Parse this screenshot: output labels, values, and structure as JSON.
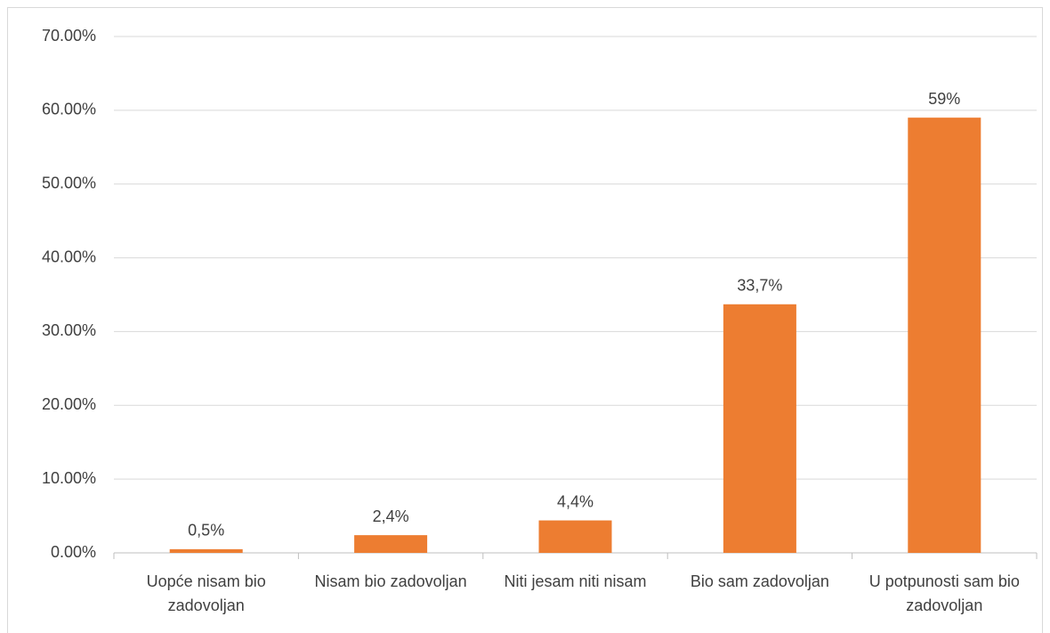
{
  "chart_data": {
    "type": "bar",
    "categories": [
      "Uopće nisam bio zadovoljan",
      "Nisam bio zadovoljan",
      "Niti jesam niti nisam",
      "Bio sam zadovoljan",
      "U potpunosti sam bio zadovoljan"
    ],
    "values": [
      0.5,
      2.4,
      4.4,
      33.7,
      59
    ],
    "value_labels": [
      "0,5%",
      "2,4%",
      "4,4%",
      "33,7%",
      "59%"
    ],
    "color": "#ed7d31",
    "ylim": [
      0,
      70
    ],
    "yticks": [
      {
        "value": 0,
        "label": "0.00%"
      },
      {
        "value": 10,
        "label": "10.00%"
      },
      {
        "value": 20,
        "label": "20.00%"
      },
      {
        "value": 30,
        "label": "30.00%"
      },
      {
        "value": 40,
        "label": "40.00%"
      },
      {
        "value": 50,
        "label": "50.00%"
      },
      {
        "value": 60,
        "label": "60.00%"
      },
      {
        "value": 70,
        "label": "70.00%"
      }
    ],
    "grid": true
  }
}
